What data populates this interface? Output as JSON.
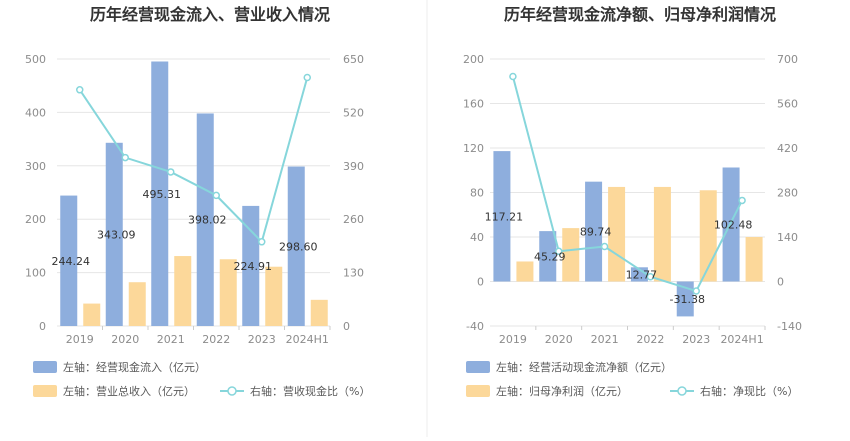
{
  "colors": {
    "bar_primary": "#8eaedd",
    "bar_secondary": "#fcd89a",
    "line": "#86d6db",
    "grid": "#e6e6e6",
    "axis_text": "#8c8c8c",
    "divider": "#eeeeee"
  },
  "chart_data": [
    {
      "type": "bar",
      "title": "历年经营现金流入、营业收入情况",
      "categories": [
        "2019",
        "2020",
        "2021",
        "2022",
        "2023",
        "2024H1"
      ],
      "y_left": {
        "min": 0,
        "max": 500,
        "ticks": [
          "0",
          "100",
          "200",
          "300",
          "400",
          "500"
        ]
      },
      "y_right": {
        "min": 0,
        "max": 650,
        "ticks": [
          "0",
          "130",
          "260",
          "390",
          "520",
          "650"
        ]
      },
      "grid": true,
      "legend_position": "bottom",
      "series": [
        {
          "name": "左轴：经营现金流入（亿元）",
          "kind": "bar",
          "axis": "left",
          "values": [
            244.24,
            343.09,
            495.31,
            398.02,
            224.91,
            298.6
          ],
          "labels": [
            "244.24",
            "343.09",
            "495.31",
            "398.02",
            "224.91",
            "298.60"
          ]
        },
        {
          "name": "左轴：营业总收入（亿元）",
          "kind": "bar",
          "axis": "left",
          "values": [
            42,
            82,
            131,
            125,
            111,
            49
          ]
        },
        {
          "name": "右轴：营收现金比（%）",
          "kind": "line",
          "axis": "right",
          "values": [
            575,
            410,
            375,
            318,
            205,
            605
          ]
        }
      ]
    },
    {
      "type": "bar",
      "title": "历年经营现金流净额、归母净利润情况",
      "categories": [
        "2019",
        "2020",
        "2021",
        "2022",
        "2023",
        "2024H1"
      ],
      "y_left": {
        "min": -40,
        "max": 200,
        "ticks": [
          "-40",
          "0",
          "40",
          "80",
          "120",
          "160",
          "200"
        ]
      },
      "y_right": {
        "min": -140,
        "max": 700,
        "ticks": [
          "-140",
          "0",
          "140",
          "280",
          "420",
          "560",
          "700"
        ]
      },
      "grid": true,
      "legend_position": "bottom",
      "series": [
        {
          "name": "左轴：经营活动现金流净额（亿元）",
          "kind": "bar",
          "axis": "left",
          "values": [
            117.21,
            45.29,
            89.74,
            12.77,
            -31.38,
            102.48
          ],
          "labels": [
            "117.21",
            "45.29",
            "89.74",
            "12.77",
            "-31.38",
            "102.48"
          ]
        },
        {
          "name": "左轴：归母净利润（亿元）",
          "kind": "bar",
          "axis": "left",
          "values": [
            18,
            48,
            85,
            85,
            82,
            40
          ]
        },
        {
          "name": "右轴：净现比（%）",
          "kind": "line",
          "axis": "right",
          "values": [
            645,
            95,
            110,
            15,
            -30,
            255
          ]
        }
      ]
    }
  ]
}
